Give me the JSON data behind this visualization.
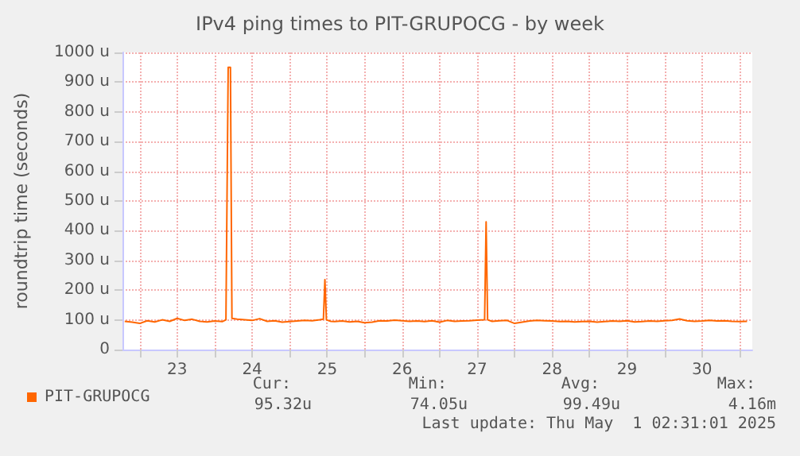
{
  "chart_data": {
    "type": "line",
    "title": "IPv4 ping times to PIT-GRUPOCG - by week",
    "ylabel": "roundtrip time (seconds)",
    "xlim": [
      22.27,
      30.67
    ],
    "xticks": [
      {
        "value": 22.5,
        "label": null
      },
      23,
      {
        "value": 23.5,
        "label": null
      },
      24,
      {
        "value": 24.5,
        "label": null
      },
      25,
      {
        "value": 25.5,
        "label": null
      },
      26,
      {
        "value": 26.5,
        "label": null
      },
      27,
      {
        "value": 27.5,
        "label": null
      },
      28,
      {
        "value": 28.5,
        "label": null
      },
      29,
      {
        "value": 29.5,
        "label": null
      },
      30,
      {
        "value": 30.5,
        "label": null
      }
    ],
    "ylim": [
      0,
      1000
    ],
    "yticks": [
      0,
      {
        "value": 100,
        "label": "100 u"
      },
      {
        "value": 200,
        "label": "200 u"
      },
      {
        "value": 300,
        "label": "300 u"
      },
      {
        "value": 400,
        "label": "400 u"
      },
      {
        "value": 500,
        "label": "500 u"
      },
      {
        "value": 600,
        "label": "600 u"
      },
      {
        "value": 700,
        "label": "700 u"
      },
      {
        "value": 800,
        "label": "800 u"
      },
      {
        "value": 900,
        "label": "900 u"
      },
      {
        "value": 1000,
        "label": "1000 u"
      }
    ],
    "grid": true,
    "legend": "bottom left",
    "marker": "none",
    "line_style": "solid",
    "annotations": [
      "Cur:",
      "Min:",
      "Avg:",
      "Max:",
      "95.32u",
      "74.05u",
      "99.49u",
      "4.16m",
      "Last update: Thu May  1 02:31:01 2025"
    ],
    "series": [
      {
        "name": "PIT-GRUPOCG",
        "color": "#ff6600",
        "x": [
          22.3,
          22.4,
          22.5,
          22.6,
          22.7,
          22.8,
          22.9,
          23.0,
          23.1,
          23.2,
          23.3,
          23.4,
          23.5,
          23.6,
          23.65,
          23.68,
          23.71,
          23.73,
          23.8,
          23.9,
          24.0,
          24.1,
          24.2,
          24.3,
          24.4,
          24.5,
          24.6,
          24.7,
          24.8,
          24.9,
          24.95,
          24.97,
          24.99,
          25.05,
          25.1,
          25.2,
          25.3,
          25.4,
          25.5,
          25.6,
          25.7,
          25.8,
          25.9,
          26.0,
          26.1,
          26.2,
          26.3,
          26.4,
          26.5,
          26.6,
          26.7,
          26.8,
          26.9,
          27.0,
          27.1,
          27.12,
          27.14,
          27.2,
          27.3,
          27.4,
          27.5,
          27.6,
          27.7,
          27.8,
          27.9,
          28.0,
          28.1,
          28.2,
          28.3,
          28.4,
          28.5,
          28.6,
          28.7,
          28.8,
          28.9,
          29.0,
          29.1,
          29.2,
          29.3,
          29.4,
          29.5,
          29.6,
          29.7,
          29.8,
          29.9,
          30.0,
          30.1,
          30.2,
          30.3,
          30.4,
          30.5,
          30.6
        ],
        "values": [
          95,
          92,
          88,
          97,
          93,
          100,
          95,
          105,
          98,
          102,
          95,
          93,
          96,
          94,
          100,
          950,
          950,
          105,
          102,
          100,
          98,
          104,
          95,
          97,
          92,
          94,
          96,
          98,
          97,
          100,
          102,
          235,
          100,
          95,
          94,
          96,
          93,
          95,
          90,
          92,
          97,
          96,
          99,
          97,
          95,
          96,
          94,
          97,
          92,
          98,
          95,
          96,
          97,
          99,
          100,
          430,
          100,
          95,
          97,
          98,
          88,
          92,
          96,
          98,
          97,
          96,
          94,
          95,
          93,
          94,
          95,
          92,
          94,
          96,
          95,
          97,
          93,
          94,
          96,
          95,
          97,
          98,
          103,
          97,
          95,
          96,
          98,
          96,
          97,
          95,
          94,
          95
        ]
      }
    ]
  }
}
